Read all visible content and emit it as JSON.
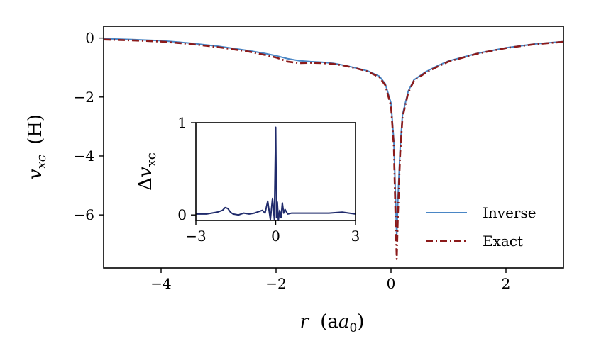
{
  "chart_data": [
    {
      "type": "line",
      "xlabel": "r (a0)",
      "ylabel": "vxc (H)",
      "xlim": [
        -5,
        3
      ],
      "ylim": [
        -7.8,
        0.4
      ],
      "xticks": [
        -4,
        -2,
        0,
        2
      ],
      "yticks": [
        0,
        -2,
        -4,
        -6
      ],
      "grid": false,
      "legend_position": "lower-right",
      "series": [
        {
          "name": "Inverse",
          "color": "#4a86c5",
          "style": "solid",
          "x": [
            -5.0,
            -4.5,
            -4.0,
            -3.5,
            -3.0,
            -2.5,
            -2.2,
            -2.0,
            -1.8,
            -1.6,
            -1.4,
            -1.2,
            -1.0,
            -0.8,
            -0.6,
            -0.4,
            -0.2,
            -0.1,
            0.0,
            0.05,
            0.08,
            0.1,
            0.12,
            0.16,
            0.2,
            0.3,
            0.4,
            0.6,
            0.8,
            1.0,
            1.5,
            2.0,
            2.5,
            3.0
          ],
          "y": [
            -0.02,
            -0.05,
            -0.09,
            -0.17,
            -0.28,
            -0.42,
            -0.52,
            -0.6,
            -0.7,
            -0.77,
            -0.8,
            -0.82,
            -0.86,
            -0.93,
            -1.02,
            -1.12,
            -1.3,
            -1.55,
            -2.2,
            -3.5,
            -5.5,
            -6.8,
            -5.5,
            -3.7,
            -2.6,
            -1.8,
            -1.42,
            -1.15,
            -0.95,
            -0.78,
            -0.52,
            -0.33,
            -0.2,
            -0.12
          ]
        },
        {
          "name": "Exact",
          "color": "#8b1a1a",
          "style": "dashdot",
          "x": [
            -5.0,
            -4.5,
            -4.0,
            -3.5,
            -3.0,
            -2.5,
            -2.2,
            -2.0,
            -1.8,
            -1.6,
            -1.4,
            -1.2,
            -1.0,
            -0.8,
            -0.6,
            -0.4,
            -0.2,
            -0.1,
            0.0,
            0.05,
            0.08,
            0.1,
            0.12,
            0.16,
            0.2,
            0.3,
            0.4,
            0.6,
            0.8,
            1.0,
            1.5,
            2.0,
            2.5,
            3.0
          ],
          "y": [
            -0.05,
            -0.08,
            -0.12,
            -0.2,
            -0.31,
            -0.45,
            -0.57,
            -0.66,
            -0.8,
            -0.85,
            -0.84,
            -0.85,
            -0.88,
            -0.94,
            -1.03,
            -1.14,
            -1.33,
            -1.6,
            -2.3,
            -3.7,
            -6.2,
            -7.5,
            -6.0,
            -3.9,
            -2.7,
            -1.85,
            -1.45,
            -1.18,
            -0.98,
            -0.8,
            -0.53,
            -0.34,
            -0.21,
            -0.13
          ]
        }
      ]
    },
    {
      "type": "line",
      "xlabel": "",
      "ylabel": "Δvxc",
      "xlim": [
        -3,
        3
      ],
      "ylim": [
        -0.06,
        1.0
      ],
      "xticks": [
        -3,
        0,
        3
      ],
      "yticks": [
        0,
        1
      ],
      "grid": false,
      "series": [
        {
          "color": "#1f2a6b",
          "x": [
            -3.0,
            -2.6,
            -2.2,
            -2.0,
            -1.9,
            -1.8,
            -1.7,
            -1.6,
            -1.4,
            -1.2,
            -1.0,
            -0.8,
            -0.6,
            -0.5,
            -0.4,
            -0.3,
            -0.2,
            -0.12,
            -0.05,
            0.0,
            0.03,
            0.06,
            0.1,
            0.15,
            0.2,
            0.25,
            0.3,
            0.35,
            0.45,
            0.6,
            0.8,
            1.0,
            1.5,
            2.0,
            2.5,
            3.0
          ],
          "y": [
            0.01,
            0.01,
            0.03,
            0.05,
            0.08,
            0.07,
            0.03,
            0.01,
            0.0,
            0.02,
            0.01,
            0.02,
            0.04,
            0.05,
            0.02,
            0.15,
            -0.05,
            0.18,
            -0.05,
            0.95,
            -0.03,
            0.14,
            -0.06,
            0.05,
            -0.03,
            0.13,
            0.02,
            0.06,
            0.01,
            0.02,
            0.02,
            0.02,
            0.02,
            0.02,
            0.03,
            0.01
          ]
        }
      ]
    }
  ],
  "main": {
    "xlabel_var": "r",
    "xlabel_unit": "(a",
    "xlabel_sub": "0",
    "xlabel_close": ")",
    "ylabel_var": "v",
    "ylabel_sub": "xc",
    "ylabel_unit": "(H)",
    "xtick_labels": [
      "−4",
      "−2",
      "0",
      "2"
    ],
    "ytick_labels": [
      "0",
      "−2",
      "−4",
      "−6"
    ]
  },
  "inset": {
    "ylabel_delta": "Δ",
    "ylabel_var": "v",
    "ylabel_sub": "xc",
    "xtick_labels": [
      "−3",
      "0",
      "3"
    ],
    "ytick_labels": [
      "0",
      "1"
    ]
  },
  "legend": {
    "items": [
      {
        "label": "Inverse",
        "color": "#4a86c5",
        "style": "solid"
      },
      {
        "label": "Exact",
        "color": "#8b1a1a",
        "style": "dashdot"
      }
    ]
  }
}
